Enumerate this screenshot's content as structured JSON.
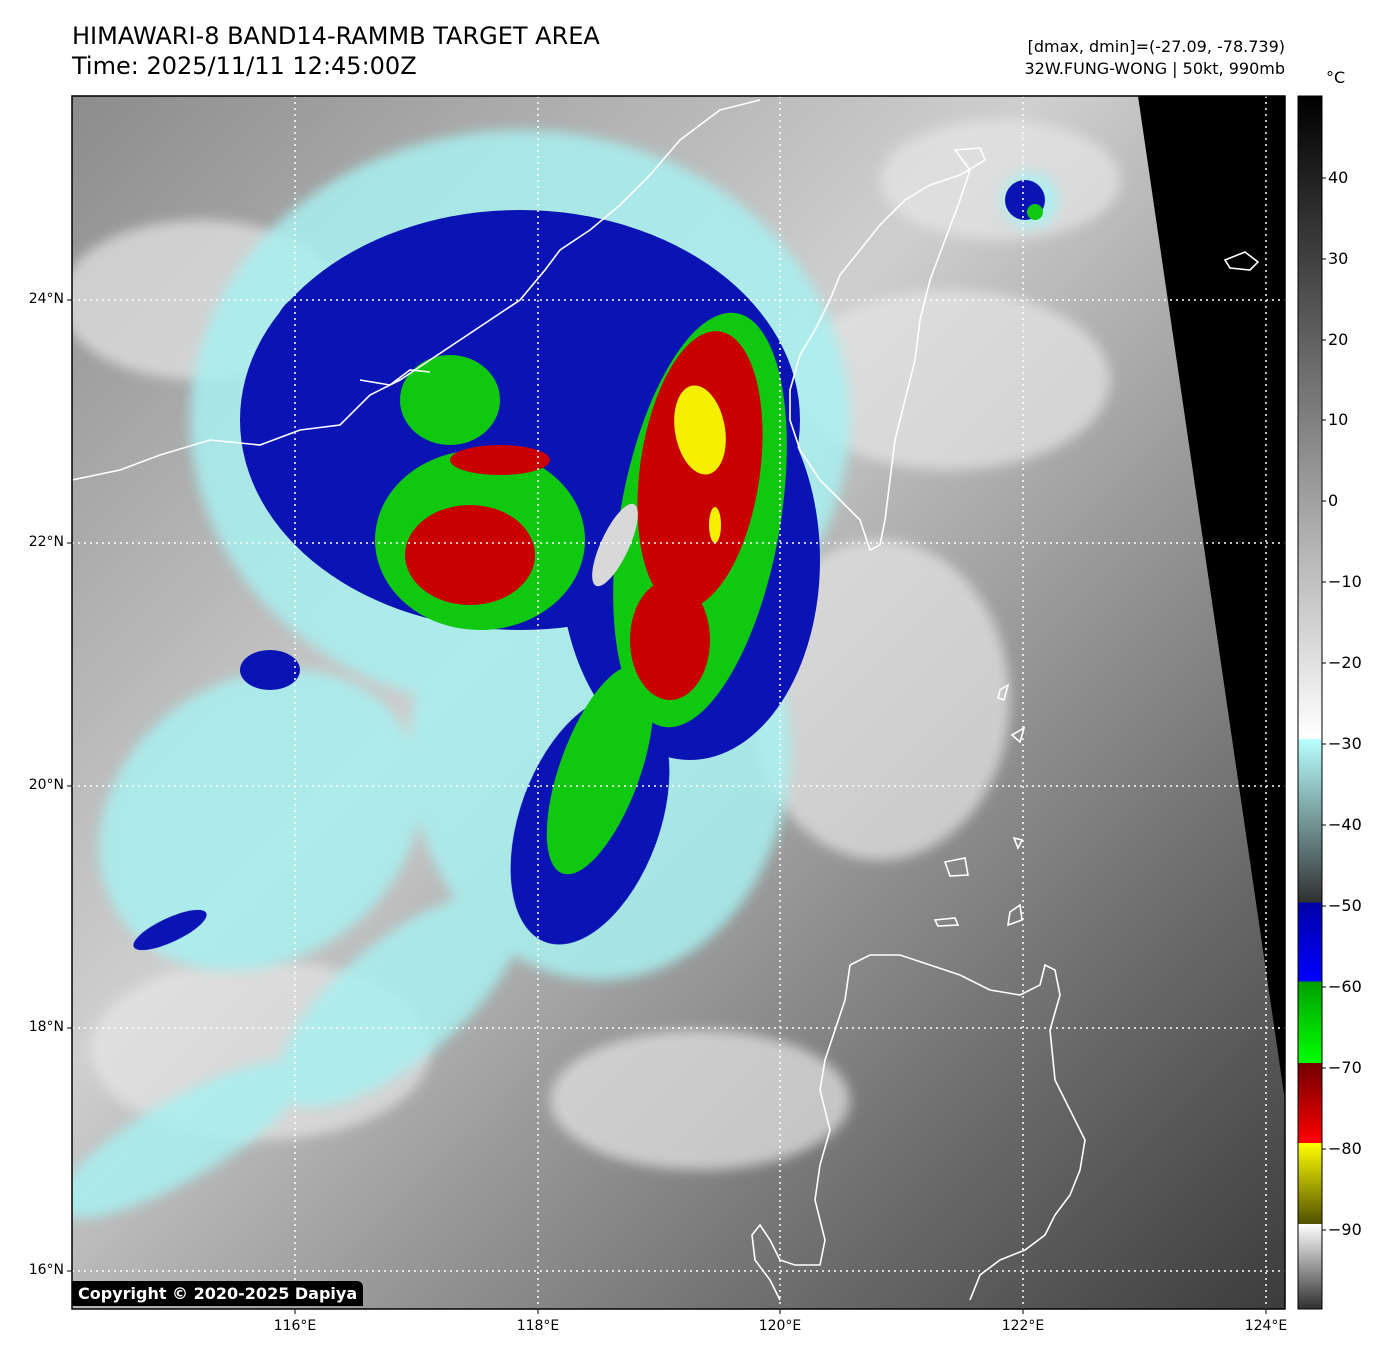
{
  "title_line1": "HIMAWARI-8 BAND14-RAMMB TARGET AREA",
  "title_line2": "Time: 2025/11/11 12:45:00Z",
  "meta_line1": "[dmax, dmin]=(-27.09, -78.739)",
  "meta_line2": "32W.FUNG-WONG | 50kt, 990mb",
  "colorbar_unit": "°C",
  "colorbar_ticks": [
    "40",
    "30",
    "20",
    "10",
    "0",
    "−10",
    "−20",
    "−30",
    "−40",
    "−50",
    "−60",
    "−70",
    "−80",
    "−90"
  ],
  "lat_labels": [
    "24°N",
    "22°N",
    "20°N",
    "18°N",
    "16°N"
  ],
  "lon_labels": [
    "116°E",
    "118°E",
    "120°E",
    "122°E",
    "124°E"
  ],
  "copyright": "Copyright © 2020-2025 Dapiya",
  "colors": {
    "cyan": "#a8f0f0",
    "blue": "#0a14b4",
    "green": "#10c810",
    "red": "#c80000",
    "yellow": "#f5f000",
    "space": "#000000"
  }
}
